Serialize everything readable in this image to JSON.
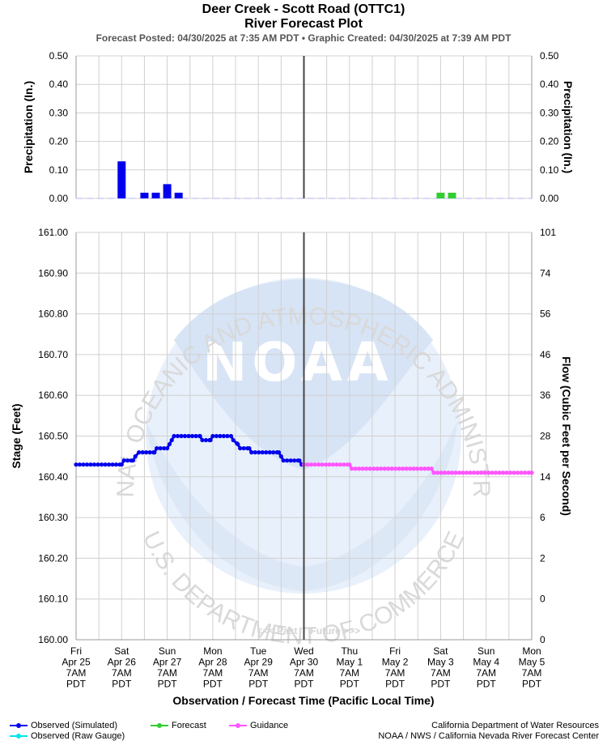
{
  "header": {
    "title": "Deer Creek - Scott Road (OTTC1)",
    "subtitle": "River Forecast Plot",
    "posted": "Forecast Posted: 04/30/2025 at 7:35 AM PDT  •  Graphic Created: 04/30/2025 at 7:39 AM PDT"
  },
  "chart_data": [
    {
      "type": "bar",
      "panel": "precipitation",
      "ylabel_left": "Precipitation (In.)",
      "ylabel_right": "Precipitation (In.)",
      "ylim": [
        0,
        0.5
      ],
      "yticks": [
        "0.50",
        "0.40",
        "0.30",
        "0.20",
        "0.10",
        "0.00"
      ],
      "grid": true,
      "series": [
        {
          "name": "Observed",
          "color": "#0000ee",
          "x_days": [
            1.0,
            1.5,
            1.75,
            2.0,
            2.25
          ],
          "values": [
            0.13,
            0.02,
            0.02,
            0.05,
            0.02
          ]
        },
        {
          "name": "Forecast",
          "color": "#33cc33",
          "x_days": [
            8.0,
            8.25
          ],
          "values": [
            0.02,
            0.02
          ]
        }
      ]
    },
    {
      "type": "line",
      "panel": "stage",
      "xlabel": "Observation / Forecast Time (Pacific Local Time)",
      "ylabel_left": "Stage (Feet)",
      "ylabel_right": "Flow (Cubic Feet per Second)",
      "ylim": [
        160.0,
        161.0
      ],
      "yticks_left": [
        "161.00",
        "160.90",
        "160.80",
        "160.70",
        "160.60",
        "160.50",
        "160.40",
        "160.30",
        "160.20",
        "160.10",
        "160.00"
      ],
      "yticks_right": [
        "101",
        "74",
        "56",
        "46",
        "36",
        "28",
        "14",
        "6",
        "2",
        "0",
        "0"
      ],
      "grid": true,
      "xticks": [
        [
          "Fri",
          "Apr 25",
          "7AM",
          "PDT"
        ],
        [
          "Sat",
          "Apr 26",
          "7AM",
          "PDT"
        ],
        [
          "Sun",
          "Apr 27",
          "7AM",
          "PDT"
        ],
        [
          "Mon",
          "Apr 28",
          "7AM",
          "PDT"
        ],
        [
          "Tue",
          "Apr 29",
          "7AM",
          "PDT"
        ],
        [
          "Wed",
          "Apr 30",
          "7AM",
          "PDT"
        ],
        [
          "Thu",
          "May 1",
          "7AM",
          "PDT"
        ],
        [
          "Fri",
          "May 2",
          "7AM",
          "PDT"
        ],
        [
          "Sat",
          "May 3",
          "7AM",
          "PDT"
        ],
        [
          "Sun",
          "May 4",
          "7AM",
          "PDT"
        ],
        [
          "Mon",
          "May 5",
          "7AM",
          "PDT"
        ]
      ],
      "now_day": 5.0,
      "past_label": "<<< Past",
      "future_label": "Future >>>",
      "series": [
        {
          "name": "Observed (Simulated)",
          "color": "#0000ee",
          "points": [
            [
              0.0,
              160.43
            ],
            [
              1.0,
              160.43
            ],
            [
              1.05,
              160.44
            ],
            [
              1.25,
              160.44
            ],
            [
              1.3,
              160.45
            ],
            [
              1.38,
              160.46
            ],
            [
              1.72,
              160.46
            ],
            [
              1.77,
              160.47
            ],
            [
              2.0,
              160.47
            ],
            [
              2.05,
              160.48
            ],
            [
              2.1,
              160.49
            ],
            [
              2.15,
              160.5
            ],
            [
              2.72,
              160.5
            ],
            [
              2.77,
              160.49
            ],
            [
              2.95,
              160.49
            ],
            [
              3.0,
              160.5
            ],
            [
              3.4,
              160.5
            ],
            [
              3.45,
              160.49
            ],
            [
              3.55,
              160.48
            ],
            [
              3.6,
              160.47
            ],
            [
              3.8,
              160.47
            ],
            [
              3.85,
              160.46
            ],
            [
              4.45,
              160.46
            ],
            [
              4.5,
              160.45
            ],
            [
              4.55,
              160.44
            ],
            [
              4.9,
              160.44
            ],
            [
              4.95,
              160.43
            ],
            [
              5.0,
              160.43
            ]
          ]
        },
        {
          "name": "Guidance",
          "color": "#ff55ff",
          "points": [
            [
              5.0,
              160.43
            ],
            [
              6.0,
              160.43
            ],
            [
              6.05,
              160.42
            ],
            [
              7.8,
              160.42
            ],
            [
              7.85,
              160.41
            ],
            [
              10.0,
              160.41
            ]
          ]
        }
      ]
    }
  ],
  "legend": {
    "observed_simulated": "Observed (Simulated)",
    "observed_raw": "Observed (Raw Gauge)",
    "forecast": "Forecast",
    "guidance": "Guidance",
    "colors": {
      "observed_simulated": "#0000ee",
      "observed_raw": "#00e5ee",
      "forecast": "#33cc33",
      "guidance": "#ff55ff"
    }
  },
  "credits": {
    "line1": "California Department of Water Resources",
    "line2": "NOAA / NWS / California Nevada River Forecast Center"
  },
  "watermark": {
    "top_arc": "NATIONAL OCEANIC AND ATMOSPHERIC ADMINISTRATION",
    "bottom_arc": "U.S. DEPARTMENT OF COMMERCE",
    "logo_text": "NOAA"
  }
}
